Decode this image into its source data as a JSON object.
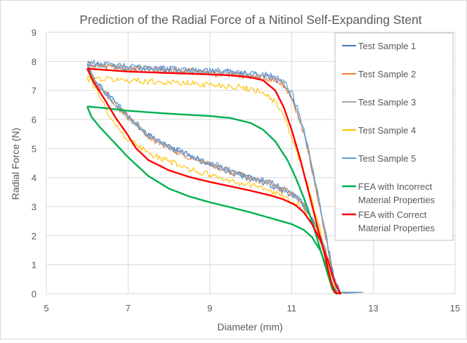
{
  "chart_data": {
    "type": "line",
    "title": "Prediction of the Radial Force of a Nitinol Self-Expanding Stent",
    "xlabel": "Diameter (mm)",
    "ylabel": "Radial Force (N)",
    "xlim": [
      5,
      15
    ],
    "ylim": [
      0,
      9
    ],
    "xticks": [
      "5",
      "7",
      "9",
      "11",
      "13",
      "15"
    ],
    "yticks": [
      "0",
      "1",
      "2",
      "3",
      "4",
      "5",
      "6",
      "7",
      "8",
      "9"
    ],
    "grid": true,
    "legend_position": "right",
    "series": [
      {
        "name": "Test Sample 1",
        "color": "#4472c4",
        "noisy": true,
        "upper": [
          [
            6.0,
            7.95
          ],
          [
            6.5,
            7.85
          ],
          [
            7.0,
            7.8
          ],
          [
            8.0,
            7.72
          ],
          [
            9.0,
            7.65
          ],
          [
            9.5,
            7.6
          ],
          [
            10.0,
            7.55
          ],
          [
            10.5,
            7.45
          ],
          [
            10.8,
            7.25
          ],
          [
            11.0,
            6.8
          ],
          [
            11.2,
            6.0
          ],
          [
            11.4,
            5.0
          ],
          [
            11.6,
            3.7
          ],
          [
            11.8,
            2.3
          ],
          [
            12.0,
            0.8
          ],
          [
            12.1,
            0.1
          ],
          [
            12.3,
            0.02
          ],
          [
            12.75,
            0.05
          ]
        ],
        "lower": [
          [
            12.75,
            0.05
          ],
          [
            12.2,
            0.05
          ],
          [
            12.0,
            0.6
          ],
          [
            11.8,
            1.6
          ],
          [
            11.6,
            2.3
          ],
          [
            11.4,
            2.8
          ],
          [
            11.2,
            3.2
          ],
          [
            11.0,
            3.4
          ],
          [
            10.5,
            3.75
          ],
          [
            10.0,
            3.95
          ],
          [
            9.5,
            4.2
          ],
          [
            9.0,
            4.45
          ],
          [
            8.5,
            4.75
          ],
          [
            8.0,
            5.05
          ],
          [
            7.5,
            5.45
          ],
          [
            7.0,
            6.1
          ],
          [
            6.5,
            6.85
          ],
          [
            6.2,
            7.3
          ],
          [
            6.0,
            7.9
          ]
        ]
      },
      {
        "name": "Test Sample 2",
        "color": "#ed7d31",
        "noisy": true,
        "upper": [
          [
            6.0,
            7.9
          ],
          [
            6.5,
            7.82
          ],
          [
            7.0,
            7.75
          ],
          [
            8.0,
            7.7
          ],
          [
            9.0,
            7.6
          ],
          [
            9.5,
            7.55
          ],
          [
            10.0,
            7.5
          ],
          [
            10.5,
            7.4
          ],
          [
            10.8,
            7.2
          ],
          [
            11.0,
            6.75
          ],
          [
            11.2,
            5.95
          ],
          [
            11.4,
            4.95
          ],
          [
            11.6,
            3.6
          ],
          [
            11.8,
            2.2
          ],
          [
            12.0,
            0.7
          ],
          [
            12.1,
            0.1
          ],
          [
            12.3,
            0.02
          ],
          [
            12.7,
            0.05
          ]
        ],
        "lower": [
          [
            12.7,
            0.05
          ],
          [
            12.2,
            0.05
          ],
          [
            12.0,
            0.55
          ],
          [
            11.8,
            1.55
          ],
          [
            11.6,
            2.3
          ],
          [
            11.4,
            2.85
          ],
          [
            11.2,
            3.25
          ],
          [
            11.0,
            3.45
          ],
          [
            10.5,
            3.8
          ],
          [
            10.0,
            4.0
          ],
          [
            9.5,
            4.2
          ],
          [
            9.0,
            4.45
          ],
          [
            8.5,
            4.7
          ],
          [
            8.0,
            5.0
          ],
          [
            7.5,
            5.4
          ],
          [
            7.0,
            6.05
          ],
          [
            6.5,
            6.8
          ],
          [
            6.2,
            7.25
          ],
          [
            6.0,
            7.85
          ]
        ]
      },
      {
        "name": "Test Sample 3",
        "color": "#a5a5a5",
        "noisy": true,
        "upper": [
          [
            6.0,
            7.92
          ],
          [
            6.5,
            7.83
          ],
          [
            7.0,
            7.78
          ],
          [
            8.0,
            7.7
          ],
          [
            9.0,
            7.62
          ],
          [
            9.5,
            7.56
          ],
          [
            10.0,
            7.5
          ],
          [
            10.5,
            7.42
          ],
          [
            10.8,
            7.22
          ],
          [
            11.0,
            6.78
          ],
          [
            11.2,
            5.98
          ],
          [
            11.4,
            4.98
          ],
          [
            11.6,
            3.65
          ],
          [
            11.8,
            2.25
          ],
          [
            12.0,
            0.75
          ],
          [
            12.1,
            0.1
          ],
          [
            12.3,
            0.02
          ],
          [
            12.72,
            0.05
          ]
        ],
        "lower": [
          [
            12.72,
            0.05
          ],
          [
            12.2,
            0.05
          ],
          [
            12.0,
            0.6
          ],
          [
            11.8,
            1.6
          ],
          [
            11.6,
            2.3
          ],
          [
            11.4,
            2.8
          ],
          [
            11.2,
            3.22
          ],
          [
            11.0,
            3.42
          ],
          [
            10.5,
            3.78
          ],
          [
            10.0,
            3.98
          ],
          [
            9.5,
            4.2
          ],
          [
            9.0,
            4.45
          ],
          [
            8.5,
            4.72
          ],
          [
            8.0,
            5.02
          ],
          [
            7.5,
            5.42
          ],
          [
            7.0,
            6.08
          ],
          [
            6.5,
            6.82
          ],
          [
            6.2,
            7.28
          ],
          [
            6.0,
            7.88
          ]
        ]
      },
      {
        "name": "Test Sample 4",
        "color": "#ffc000",
        "noisy": true,
        "upper": [
          [
            6.0,
            7.45
          ],
          [
            6.3,
            7.4
          ],
          [
            7.0,
            7.35
          ],
          [
            8.0,
            7.28
          ],
          [
            9.0,
            7.2
          ],
          [
            9.5,
            7.15
          ],
          [
            10.0,
            7.05
          ],
          [
            10.3,
            6.95
          ],
          [
            10.6,
            6.6
          ],
          [
            10.8,
            6.1
          ],
          [
            11.0,
            5.4
          ],
          [
            11.2,
            4.6
          ],
          [
            11.4,
            3.7
          ],
          [
            11.6,
            2.7
          ],
          [
            11.8,
            1.6
          ],
          [
            12.0,
            0.5
          ],
          [
            12.1,
            0.05
          ],
          [
            12.3,
            0.02
          ],
          [
            12.7,
            0.05
          ]
        ],
        "lower": [
          [
            12.7,
            0.05
          ],
          [
            12.2,
            0.05
          ],
          [
            12.0,
            0.55
          ],
          [
            11.8,
            1.5
          ],
          [
            11.6,
            2.2
          ],
          [
            11.4,
            2.7
          ],
          [
            11.2,
            3.0
          ],
          [
            11.0,
            3.2
          ],
          [
            10.5,
            3.55
          ],
          [
            10.0,
            3.75
          ],
          [
            9.5,
            3.9
          ],
          [
            9.0,
            4.1
          ],
          [
            8.5,
            4.3
          ],
          [
            8.0,
            4.55
          ],
          [
            7.5,
            4.85
          ],
          [
            7.0,
            5.3
          ],
          [
            6.6,
            6.0
          ],
          [
            6.3,
            6.8
          ],
          [
            6.1,
            7.3
          ],
          [
            6.0,
            7.45
          ]
        ]
      },
      {
        "name": "Test Sample 5",
        "color": "#5b9bd5",
        "noisy": true,
        "upper": [
          [
            6.0,
            7.98
          ],
          [
            6.5,
            7.88
          ],
          [
            7.0,
            7.82
          ],
          [
            8.0,
            7.75
          ],
          [
            9.0,
            7.68
          ],
          [
            9.5,
            7.64
          ],
          [
            10.0,
            7.6
          ],
          [
            10.5,
            7.52
          ],
          [
            10.8,
            7.35
          ],
          [
            11.0,
            6.95
          ],
          [
            11.2,
            6.15
          ],
          [
            11.4,
            5.1
          ],
          [
            11.6,
            3.8
          ],
          [
            11.8,
            2.35
          ],
          [
            12.0,
            0.85
          ],
          [
            12.1,
            0.1
          ],
          [
            12.3,
            0.02
          ],
          [
            12.75,
            0.05
          ]
        ],
        "lower": [
          [
            12.75,
            0.05
          ],
          [
            12.2,
            0.05
          ],
          [
            12.0,
            0.65
          ],
          [
            11.8,
            1.65
          ],
          [
            11.6,
            2.35
          ],
          [
            11.4,
            2.85
          ],
          [
            11.2,
            3.25
          ],
          [
            11.0,
            3.45
          ],
          [
            10.5,
            3.82
          ],
          [
            10.0,
            4.02
          ],
          [
            9.5,
            4.25
          ],
          [
            9.0,
            4.5
          ],
          [
            8.5,
            4.78
          ],
          [
            8.0,
            5.08
          ],
          [
            7.5,
            5.48
          ],
          [
            7.0,
            6.12
          ],
          [
            6.5,
            6.88
          ],
          [
            6.2,
            7.32
          ],
          [
            6.0,
            7.92
          ]
        ]
      },
      {
        "name": "FEA with Incorrect Material Properties",
        "color": "#00b050",
        "noisy": false,
        "upper": [
          [
            6.0,
            6.45
          ],
          [
            6.5,
            6.38
          ],
          [
            7.0,
            6.3
          ],
          [
            8.0,
            6.2
          ],
          [
            9.0,
            6.12
          ],
          [
            9.5,
            6.05
          ],
          [
            10.0,
            5.88
          ],
          [
            10.3,
            5.65
          ],
          [
            10.6,
            5.25
          ],
          [
            10.9,
            4.6
          ],
          [
            11.1,
            4.0
          ],
          [
            11.3,
            3.3
          ],
          [
            11.5,
            2.5
          ],
          [
            11.7,
            1.55
          ],
          [
            11.9,
            0.6
          ],
          [
            12.0,
            0.15
          ],
          [
            12.1,
            0.0
          ]
        ],
        "lower": [
          [
            12.1,
            0.0
          ],
          [
            12.0,
            0.3
          ],
          [
            11.9,
            0.75
          ],
          [
            11.7,
            1.5
          ],
          [
            11.5,
            1.95
          ],
          [
            11.3,
            2.2
          ],
          [
            11.0,
            2.4
          ],
          [
            10.5,
            2.6
          ],
          [
            10.0,
            2.8
          ],
          [
            9.5,
            2.98
          ],
          [
            9.0,
            3.15
          ],
          [
            8.5,
            3.35
          ],
          [
            8.0,
            3.62
          ],
          [
            7.5,
            4.05
          ],
          [
            7.0,
            4.7
          ],
          [
            6.6,
            5.3
          ],
          [
            6.3,
            5.75
          ],
          [
            6.1,
            6.1
          ],
          [
            6.0,
            6.45
          ]
        ]
      },
      {
        "name": "FEA with Correct Material Properties",
        "color": "#ff0000",
        "noisy": false,
        "upper": [
          [
            6.0,
            7.75
          ],
          [
            6.5,
            7.7
          ],
          [
            7.0,
            7.65
          ],
          [
            8.0,
            7.6
          ],
          [
            9.0,
            7.55
          ],
          [
            9.5,
            7.52
          ],
          [
            10.0,
            7.45
          ],
          [
            10.3,
            7.35
          ],
          [
            10.6,
            7.0
          ],
          [
            10.8,
            6.45
          ],
          [
            11.0,
            5.65
          ],
          [
            11.2,
            4.7
          ],
          [
            11.4,
            3.6
          ],
          [
            11.6,
            2.5
          ],
          [
            11.8,
            1.4
          ],
          [
            11.95,
            0.5
          ],
          [
            12.05,
            0.05
          ],
          [
            12.2,
            0.0
          ]
        ],
        "lower": [
          [
            12.2,
            0.0
          ],
          [
            12.05,
            0.4
          ],
          [
            11.9,
            1.1
          ],
          [
            11.7,
            1.85
          ],
          [
            11.5,
            2.4
          ],
          [
            11.3,
            2.8
          ],
          [
            11.1,
            3.05
          ],
          [
            10.8,
            3.25
          ],
          [
            10.5,
            3.38
          ],
          [
            10.0,
            3.55
          ],
          [
            9.5,
            3.7
          ],
          [
            9.0,
            3.85
          ],
          [
            8.5,
            4.02
          ],
          [
            8.0,
            4.25
          ],
          [
            7.5,
            4.6
          ],
          [
            7.2,
            5.0
          ],
          [
            7.0,
            5.45
          ],
          [
            6.7,
            6.05
          ],
          [
            6.4,
            6.75
          ],
          [
            6.15,
            7.3
          ],
          [
            6.0,
            7.75
          ]
        ]
      }
    ]
  }
}
